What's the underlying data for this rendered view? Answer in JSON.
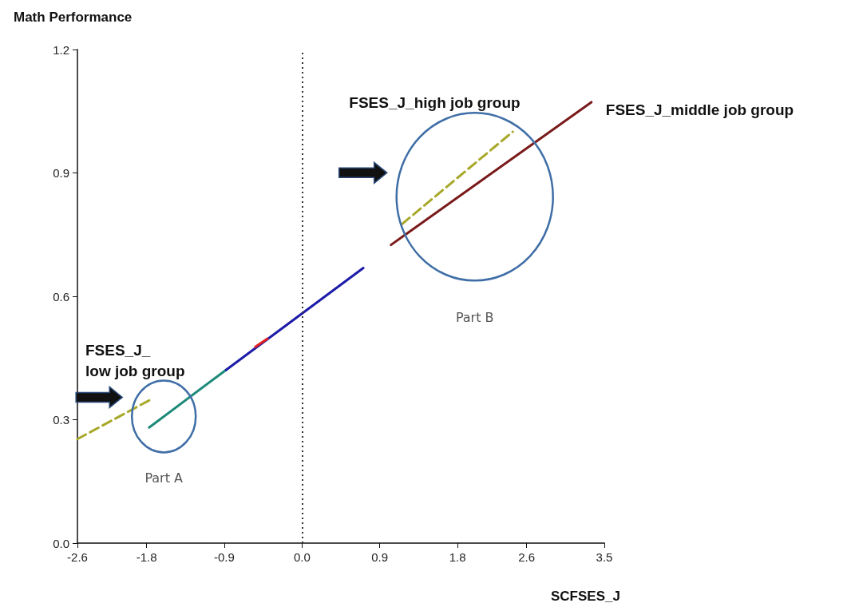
{
  "chart_data": {
    "type": "line",
    "ylabel": "Math Performance",
    "xlabel": "SCFSES_J",
    "xlim": [
      -2.6,
      3.5
    ],
    "xticks": [
      -2.6,
      -1.8,
      -0.9,
      {
        "value": 0,
        "label": "0.0"
      },
      0.9,
      1.8,
      2.6,
      3.5
    ],
    "ylim": [
      0,
      1.2
    ],
    "yticks": [
      {
        "value": 0,
        "label": "0.0"
      },
      0.3,
      0.6,
      0.9,
      1.2
    ],
    "grid": false,
    "legend": false,
    "marker": "none",
    "ref_lines": [
      {
        "axis": "x",
        "value": 0,
        "line_style": "dotted",
        "color": "#333333"
      }
    ],
    "annotations": [
      "Part A",
      "Part B"
    ],
    "series": [
      {
        "name": "FSES_J_\nlow job group",
        "color": "#a8a82a",
        "line_style": "dashed",
        "x": [
          -2.6,
          -1.77
        ],
        "values": [
          0.253,
          0.347
        ]
      },
      {
        "color": "#1e8a7a",
        "x": [
          -1.77,
          -0.88
        ],
        "values": [
          0.281,
          0.421
        ]
      },
      {
        "color": "#1c1ca8",
        "x": [
          -0.88,
          0.71
        ],
        "values": [
          0.421,
          0.669
        ]
      },
      {
        "color": "#e02020",
        "x": [
          -0.54,
          -0.4
        ],
        "values": [
          0.477,
          0.497
        ]
      },
      {
        "name": "FSES_J_high job group",
        "color": "#a8a82a",
        "line_style": "dashed",
        "x": [
          1.16,
          2.44
        ],
        "values": [
          0.776,
          1.0
        ]
      },
      {
        "name": "FSES_J_middle job group",
        "color": "#7a1a1a",
        "x": [
          1.03,
          3.35
        ],
        "values": [
          0.725,
          1.072
        ]
      }
    ]
  }
}
